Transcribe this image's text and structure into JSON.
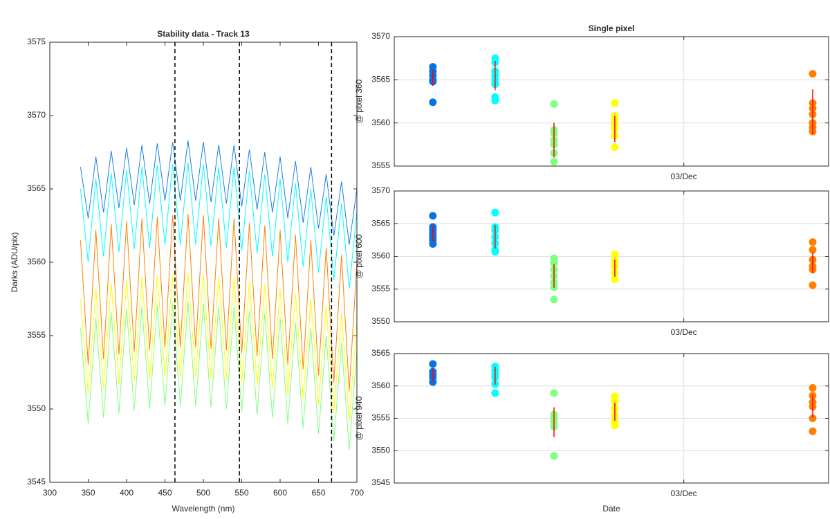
{
  "chart_data": [
    {
      "type": "line",
      "title": "Stability data - Track 13",
      "xlabel": "Wavelength (nm)",
      "ylabel": "Darks (ADU/pix)",
      "xlim": [
        300,
        700
      ],
      "xticks": [
        300,
        350,
        400,
        450,
        500,
        550,
        600,
        650,
        700
      ],
      "ylim": [
        3545,
        3575
      ],
      "yticks": [
        3545,
        3550,
        3555,
        3560,
        3565,
        3570,
        3575
      ],
      "grid": false,
      "vlines": [
        463,
        547,
        667
      ],
      "x": [
        340,
        350,
        360,
        370,
        380,
        390,
        400,
        410,
        420,
        430,
        440,
        450,
        460,
        470,
        480,
        490,
        500,
        510,
        520,
        530,
        540,
        550,
        560,
        570,
        580,
        590,
        600,
        610,
        620,
        630,
        640,
        650,
        660,
        670,
        680,
        690,
        700
      ],
      "series": [
        {
          "color": "#1a7ee8",
          "values": [
            3566.5,
            3563,
            3567.2,
            3563.4,
            3567.6,
            3563.7,
            3567.8,
            3563.9,
            3568,
            3564,
            3568.1,
            3564.2,
            3568.2,
            3564.2,
            3568.3,
            3564.2,
            3568.2,
            3564.1,
            3568,
            3564,
            3568,
            3563.8,
            3567.7,
            3563.6,
            3567.5,
            3563.4,
            3567.2,
            3563,
            3566.9,
            3562.7,
            3566.5,
            3562.3,
            3566,
            3561.8,
            3565.5,
            3561.2,
            3565
          ]
        },
        {
          "color": "#00ffff",
          "values": [
            3565,
            3560,
            3565.7,
            3560.4,
            3566.1,
            3560.7,
            3566.3,
            3560.9,
            3566.5,
            3561,
            3566.6,
            3561.2,
            3566.7,
            3561.2,
            3566.8,
            3561.2,
            3566.7,
            3561.1,
            3566.5,
            3561,
            3566.5,
            3560.8,
            3566.2,
            3560.6,
            3566,
            3560.4,
            3565.7,
            3560,
            3565.4,
            3559.7,
            3565,
            3559.3,
            3564.5,
            3558.8,
            3564,
            3558.2,
            3563.5
          ]
        },
        {
          "color": "#80ff80",
          "values": [
            3555.5,
            3549,
            3556.2,
            3549.4,
            3556.6,
            3549.7,
            3556.8,
            3549.9,
            3557,
            3550,
            3557.1,
            3550.2,
            3557.2,
            3550.2,
            3557.3,
            3550.2,
            3557.2,
            3550.1,
            3557,
            3550,
            3557,
            3549.8,
            3556.7,
            3549.6,
            3556.5,
            3549.4,
            3556.2,
            3549,
            3555.9,
            3548.7,
            3555.5,
            3548.3,
            3555,
            3547.8,
            3554.5,
            3547.2,
            3554
          ]
        },
        {
          "color": "#ffff00",
          "values": [
            3557.5,
            3551,
            3558.2,
            3551.4,
            3558.6,
            3551.7,
            3558.8,
            3551.9,
            3559,
            3552,
            3559.1,
            3552.2,
            3559.2,
            3552.2,
            3559.3,
            3552.2,
            3559.2,
            3552.1,
            3559,
            3552,
            3559,
            3551.8,
            3558.7,
            3551.6,
            3558.5,
            3551.4,
            3558.2,
            3551,
            3557.9,
            3550.7,
            3557.5,
            3550.3,
            3557,
            3549.8,
            3556.5,
            3549.2,
            3556
          ]
        },
        {
          "color": "#ff8000",
          "values": [
            3561.5,
            3553,
            3562.2,
            3553.4,
            3562.6,
            3553.7,
            3562.8,
            3553.9,
            3563,
            3554,
            3563.1,
            3554.2,
            3563.2,
            3554.2,
            3563.3,
            3554.2,
            3563.2,
            3554.1,
            3563,
            3554,
            3563,
            3553.8,
            3562.7,
            3553.6,
            3562.5,
            3553.4,
            3562.2,
            3553,
            3561.9,
            3552.7,
            3561.5,
            3552.3,
            3561,
            3551.8,
            3560.5,
            3551.2,
            3560
          ]
        }
      ]
    },
    {
      "type": "scatter",
      "title": "Single pixel",
      "ylabel": "@ pixel 360",
      "error_color": "#ff0000",
      "xlim": [
        2.4,
        3.3
      ],
      "xticks": [
        {
          "value": 3,
          "label": "03/Dec"
        }
      ],
      "ylim": [
        3555,
        3570
      ],
      "yticks": [
        3555,
        3560,
        3565,
        3570
      ],
      "grid": true,
      "groups": [
        {
          "x": 2.48,
          "color": "#0a72e0",
          "points": [
            3566.5,
            3566,
            3565.5,
            3565,
            3564.8,
            3562.4
          ],
          "mean": 3565.2,
          "err": 0.9
        },
        {
          "x": 2.609,
          "color": "#00ffff",
          "points": [
            3567.5,
            3567,
            3566,
            3565.5,
            3565,
            3564.5,
            3563,
            3562.6
          ],
          "mean": 3565.5,
          "err": 1.7
        },
        {
          "x": 2.731,
          "color": "#80ff80",
          "points": [
            3562.2,
            3559.2,
            3558.8,
            3558,
            3557.5,
            3556.5,
            3555.5
          ],
          "mean": 3558,
          "err": 2
        },
        {
          "x": 2.857,
          "color": "#ffff00",
          "points": [
            3562.3,
            3560.8,
            3560.3,
            3559.8,
            3559.3,
            3558.5,
            3557.2
          ],
          "mean": 3559.3,
          "err": 1.5
        },
        {
          "x": 3.267,
          "color": "#ff8000",
          "points": [
            3565.7,
            3562.3,
            3561.7,
            3561,
            3560,
            3559.5,
            3559
          ],
          "mean": 3561.3,
          "err": 2.6
        }
      ]
    },
    {
      "type": "scatter",
      "ylabel": "@ pixel 600",
      "error_color": "#ff0000",
      "xlim": [
        2.4,
        3.3
      ],
      "xticks": [
        {
          "value": 3,
          "label": "03/Dec"
        }
      ],
      "ylim": [
        3550,
        3570
      ],
      "yticks": [
        3550,
        3555,
        3560,
        3565,
        3570
      ],
      "grid": true,
      "groups": [
        {
          "x": 2.48,
          "color": "#0a72e0",
          "points": [
            3566.2,
            3564.5,
            3564,
            3563.5,
            3563,
            3562.5,
            3561.9
          ],
          "mean": 3563.5,
          "err": 1.2
        },
        {
          "x": 2.609,
          "color": "#00ffff",
          "points": [
            3566.7,
            3564.5,
            3564,
            3563,
            3562,
            3561,
            3560.7
          ],
          "mean": 3563,
          "err": 1.8
        },
        {
          "x": 2.731,
          "color": "#80ff80",
          "points": [
            3559.7,
            3559,
            3558,
            3557,
            3556,
            3555.3,
            3553.4
          ],
          "mean": 3557,
          "err": 1.8
        },
        {
          "x": 2.857,
          "color": "#ffff00",
          "points": [
            3560.3,
            3559.3,
            3558.5,
            3557.5,
            3556.5
          ],
          "mean": 3558.2,
          "err": 1.3
        },
        {
          "x": 3.267,
          "color": "#ff8000",
          "points": [
            3562.2,
            3561,
            3559.5,
            3558.5,
            3558,
            3555.6
          ],
          "mean": 3559,
          "err": 1.6
        }
      ]
    },
    {
      "type": "scatter",
      "ylabel": "@ pixel 940",
      "xlabel": "Date",
      "error_color": "#ff0000",
      "xlim": [
        2.4,
        3.3
      ],
      "xticks": [
        {
          "value": 3,
          "label": "03/Dec"
        }
      ],
      "ylim": [
        3545,
        3565
      ],
      "yticks": [
        3545,
        3550,
        3555,
        3560,
        3565
      ],
      "grid": true,
      "groups": [
        {
          "x": 2.48,
          "color": "#0a72e0",
          "points": [
            3563.4,
            3562.2,
            3561.8,
            3561.3,
            3560.6
          ],
          "mean": 3561.7,
          "err": 1
        },
        {
          "x": 2.609,
          "color": "#00ffff",
          "points": [
            3563,
            3562.4,
            3561.8,
            3561.3,
            3560.3,
            3558.9
          ],
          "mean": 3561.6,
          "err": 1.4
        },
        {
          "x": 2.731,
          "color": "#80ff80",
          "points": [
            3558.9,
            3555.6,
            3555,
            3554.4,
            3553.7,
            3549.2
          ],
          "mean": 3554.4,
          "err": 2.3
        },
        {
          "x": 2.857,
          "color": "#ffff00",
          "points": [
            3558.4,
            3557.6,
            3556.5,
            3555.5,
            3554.5,
            3553.9
          ],
          "mean": 3556,
          "err": 1.4
        },
        {
          "x": 3.267,
          "color": "#ff8000",
          "points": [
            3559.7,
            3558.5,
            3557.5,
            3556.8,
            3555,
            3553
          ],
          "mean": 3556.9,
          "err": 1.8
        }
      ]
    }
  ]
}
